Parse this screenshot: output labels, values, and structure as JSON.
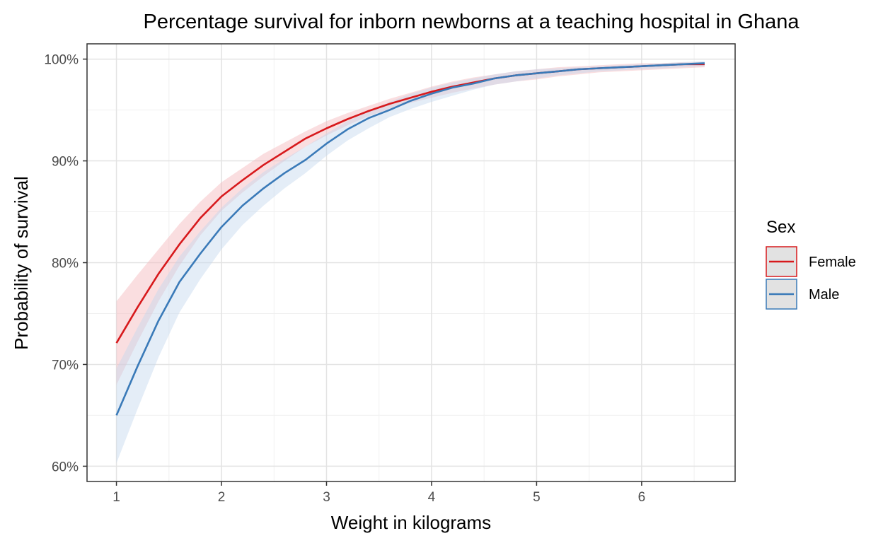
{
  "chart_data": {
    "type": "line",
    "title": "Percentage survival for inborn newborns at a teaching hospital in Ghana",
    "xlabel": "Weight in kilograms",
    "ylabel": "Probability of survival",
    "xlim": [
      0.72,
      6.89
    ],
    "ylim": [
      58.5,
      101.5
    ],
    "x_ticks": [
      1,
      2,
      3,
      4,
      5,
      6
    ],
    "x_tick_labels": [
      "1",
      "2",
      "3",
      "4",
      "5",
      "6"
    ],
    "y_ticks": [
      60,
      70,
      80,
      90,
      100
    ],
    "y_tick_labels": [
      "60%",
      "70%",
      "80%",
      "90%",
      "100%"
    ],
    "grid": true,
    "legend": {
      "title": "Sex",
      "position": "right",
      "entries": [
        "Female",
        "Male"
      ]
    },
    "x": [
      1.0,
      1.2,
      1.4,
      1.6,
      1.8,
      2.0,
      2.2,
      2.4,
      2.6,
      2.8,
      3.0,
      3.2,
      3.4,
      3.6,
      3.8,
      4.0,
      4.2,
      4.4,
      4.6,
      4.8,
      5.0,
      5.2,
      5.4,
      5.6,
      5.8,
      6.0,
      6.2,
      6.4,
      6.6
    ],
    "series": [
      {
        "name": "Female",
        "color": "#d7191c",
        "band_color": "#f4b5ba",
        "values": [
          72.1,
          75.6,
          78.9,
          81.8,
          84.4,
          86.5,
          88.1,
          89.6,
          90.9,
          92.2,
          93.2,
          94.1,
          94.9,
          95.6,
          96.2,
          96.8,
          97.3,
          97.7,
          98.1,
          98.4,
          98.6,
          98.8,
          99.0,
          99.1,
          99.2,
          99.3,
          99.4,
          99.5,
          99.5
        ],
        "lower": [
          68.0,
          72.2,
          76.2,
          79.7,
          82.7,
          85.1,
          86.9,
          88.5,
          90.0,
          91.4,
          92.5,
          93.5,
          94.4,
          95.1,
          95.7,
          96.2,
          96.7,
          97.1,
          97.5,
          97.8,
          98.0,
          98.3,
          98.5,
          98.7,
          98.8,
          98.9,
          99.0,
          99.1,
          99.2
        ],
        "upper": [
          76.2,
          78.8,
          81.3,
          83.8,
          86.0,
          87.9,
          89.3,
          90.7,
          91.8,
          92.9,
          93.9,
          94.7,
          95.4,
          96.1,
          96.7,
          97.3,
          97.8,
          98.2,
          98.5,
          98.8,
          99.0,
          99.2,
          99.3,
          99.4,
          99.5,
          99.6,
          99.6,
          99.7,
          99.7
        ]
      },
      {
        "name": "Male",
        "color": "#3a7ab8",
        "band_color": "#c3d8ee",
        "values": [
          65.0,
          69.8,
          74.3,
          78.1,
          80.9,
          83.5,
          85.6,
          87.3,
          88.8,
          90.1,
          91.7,
          93.1,
          94.2,
          95.0,
          95.9,
          96.6,
          97.2,
          97.6,
          98.1,
          98.4,
          98.6,
          98.8,
          99.0,
          99.1,
          99.2,
          99.3,
          99.4,
          99.5,
          99.6
        ],
        "lower": [
          60.3,
          65.6,
          70.7,
          75.1,
          78.4,
          81.3,
          83.7,
          85.6,
          87.3,
          88.8,
          90.5,
          92.0,
          93.2,
          94.3,
          95.1,
          95.8,
          96.4,
          97.0,
          97.5,
          97.8,
          98.1,
          98.4,
          98.6,
          98.8,
          98.9,
          99.0,
          99.1,
          99.2,
          99.3
        ],
        "upper": [
          69.6,
          73.6,
          77.4,
          80.6,
          83.1,
          85.4,
          87.3,
          88.9,
          90.2,
          91.4,
          92.7,
          93.9,
          94.9,
          95.8,
          96.6,
          97.2,
          97.7,
          98.1,
          98.5,
          98.8,
          99.0,
          99.1,
          99.2,
          99.3,
          99.4,
          99.5,
          99.6,
          99.7,
          99.8
        ]
      }
    ]
  }
}
